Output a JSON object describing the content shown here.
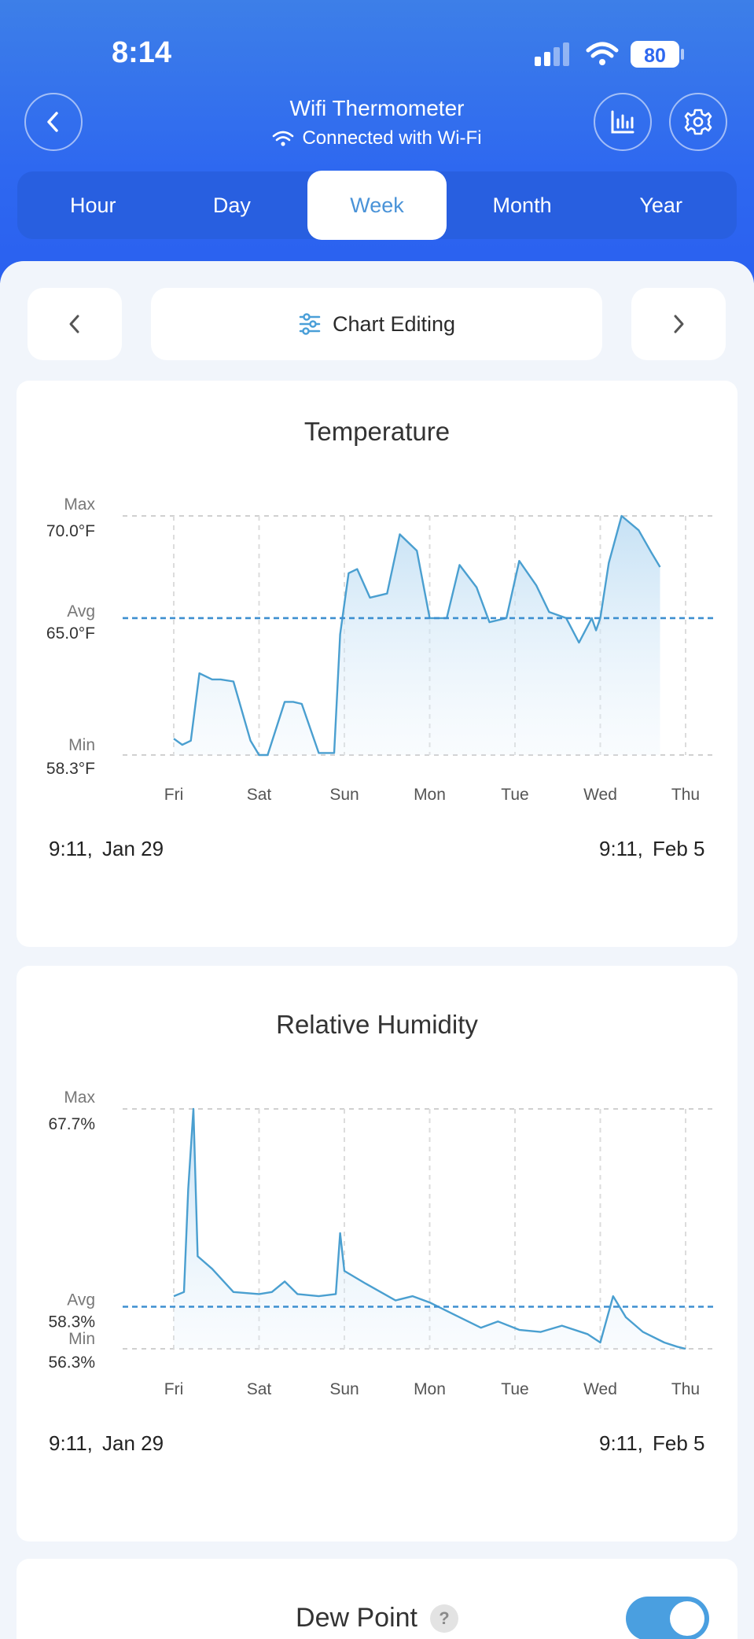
{
  "status_bar": {
    "time": "8:14",
    "battery": "80"
  },
  "header": {
    "title": "Wifi Thermometer",
    "subtitle": "Connected with Wi-Fi"
  },
  "tabs": [
    {
      "label": "Hour",
      "active": false
    },
    {
      "label": "Day",
      "active": false
    },
    {
      "label": "Week",
      "active": true
    },
    {
      "label": "Month",
      "active": false
    },
    {
      "label": "Year",
      "active": false
    }
  ],
  "chart_editing": {
    "label": "Chart Editing"
  },
  "colors": {
    "accent": "#4a9fd8",
    "header_blue": "#2e68f0",
    "line": "#4a9fd0"
  },
  "chart_data": [
    {
      "type": "area",
      "title": "Temperature",
      "categories": [
        "Fri",
        "Sat",
        "Sun",
        "Mon",
        "Tue",
        "Wed",
        "Thu"
      ],
      "y_labels": {
        "max_label": "Max",
        "max_value": "70.0°F",
        "avg_label": "Avg",
        "avg_value": "65.0°F",
        "min_label": "Min",
        "min_value": "58.3°F"
      },
      "ylim": [
        58.3,
        70.0
      ],
      "average": 65.0,
      "grid": true,
      "x": [
        0,
        0.1,
        0.2,
        0.3,
        0.45,
        0.55,
        0.7,
        0.9,
        1.0,
        1.1,
        1.3,
        1.4,
        1.5,
        1.7,
        1.88,
        1.95,
        2.05,
        2.15,
        2.3,
        2.5,
        2.65,
        2.85,
        3.0,
        3.2,
        3.35,
        3.55,
        3.7,
        3.9,
        4.05,
        4.25,
        4.4,
        4.6,
        4.75,
        4.9,
        4.95,
        5.0,
        5.1,
        5.25,
        5.45,
        5.6,
        5.7
      ],
      "values": [
        59.1,
        58.8,
        59.0,
        62.3,
        62.0,
        62.0,
        61.9,
        59.0,
        58.3,
        58.3,
        60.9,
        60.9,
        60.8,
        58.4,
        58.4,
        64.2,
        67.2,
        67.4,
        66.0,
        66.2,
        69.1,
        68.3,
        65.0,
        65.0,
        67.6,
        66.5,
        64.8,
        65.0,
        67.8,
        66.6,
        65.3,
        65.0,
        63.8,
        65.0,
        64.4,
        65.0,
        67.7,
        70.0,
        69.3,
        68.2,
        67.5
      ]
    },
    {
      "type": "area",
      "title": "Relative Humidity",
      "categories": [
        "Fri",
        "Sat",
        "Sun",
        "Mon",
        "Tue",
        "Wed",
        "Thu"
      ],
      "y_labels": {
        "max_label": "Max",
        "max_value": "67.7%",
        "avg_label": "Avg",
        "avg_value": "58.3%",
        "min_label": "Min",
        "min_value": "56.3%"
      },
      "ylim": [
        56.3,
        67.7
      ],
      "average": 58.3,
      "grid": true,
      "x": [
        0,
        0.12,
        0.17,
        0.23,
        0.28,
        0.45,
        0.7,
        1.0,
        1.15,
        1.3,
        1.45,
        1.7,
        1.9,
        1.95,
        2.0,
        2.25,
        2.6,
        2.8,
        3.0,
        3.3,
        3.6,
        3.8,
        4.05,
        4.3,
        4.55,
        4.85,
        5.0,
        5.15,
        5.3,
        5.5,
        5.75,
        5.9,
        6.0
      ],
      "values": [
        58.8,
        59.0,
        63.9,
        67.7,
        60.7,
        60.1,
        59.0,
        58.9,
        59.0,
        59.5,
        58.9,
        58.8,
        58.9,
        61.8,
        60.0,
        59.4,
        58.6,
        58.8,
        58.5,
        57.9,
        57.3,
        57.6,
        57.2,
        57.1,
        57.4,
        57.0,
        56.6,
        58.8,
        57.8,
        57.1,
        56.6,
        56.4,
        56.3
      ]
    }
  ],
  "temperature_range": {
    "start_time": "9:11,",
    "start_date": "Jan 29",
    "end_time": "9:11,",
    "end_date": "Feb 5"
  },
  "humidity_range": {
    "start_time": "9:11,",
    "start_date": "Jan 29",
    "end_time": "9:11,",
    "end_date": "Feb 5"
  },
  "dew_point": {
    "label": "Dew Point",
    "help": "?",
    "enabled": true
  }
}
